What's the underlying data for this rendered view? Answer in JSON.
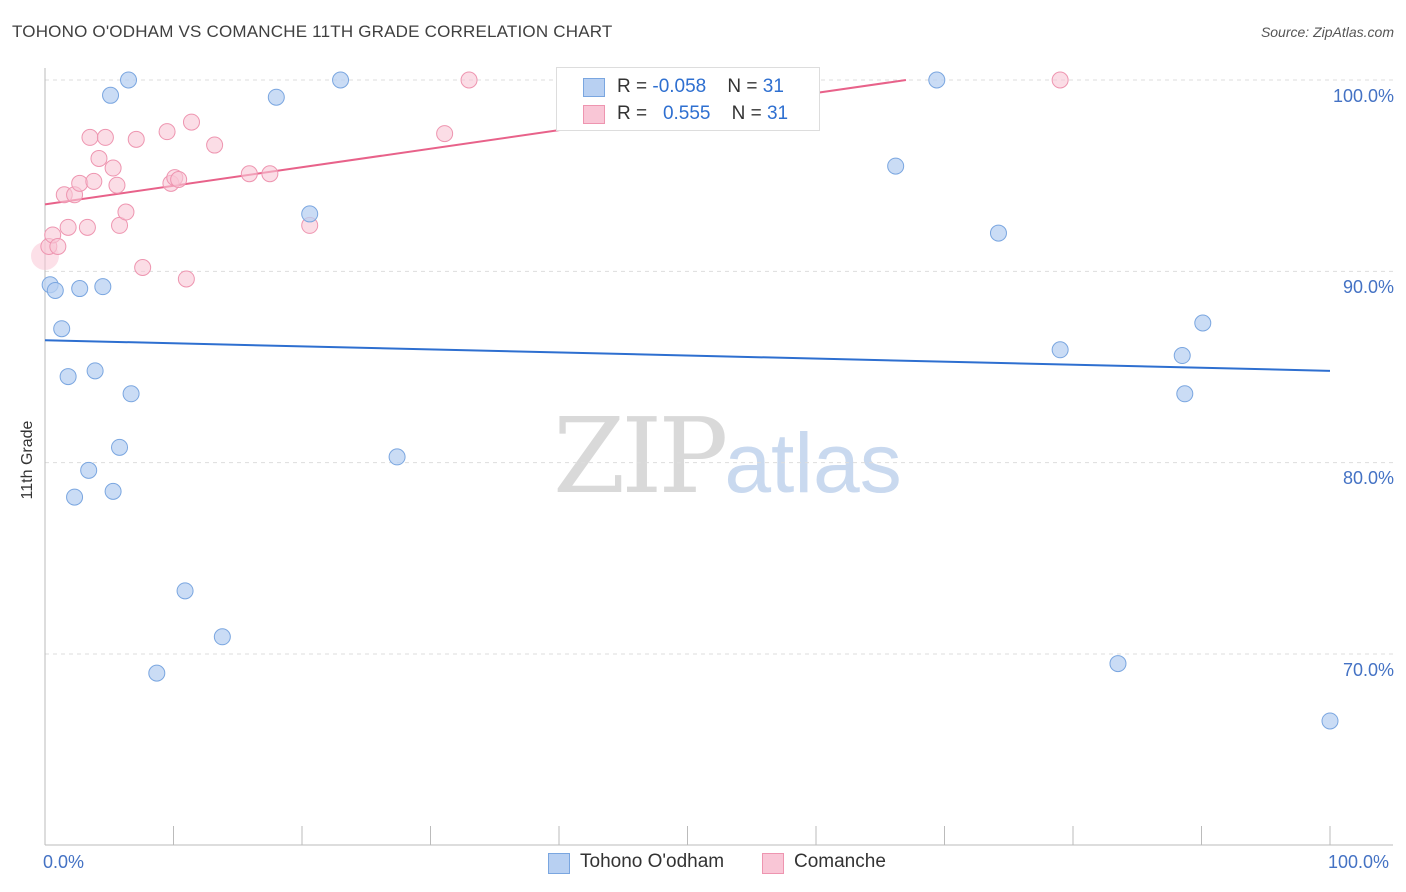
{
  "title": "TOHONO O'ODHAM VS COMANCHE 11TH GRADE CORRELATION CHART",
  "source": "Source: ZipAtlas.com",
  "watermark": {
    "zip": "ZIP",
    "atlas": "atlas"
  },
  "legend": {
    "rows": [
      {
        "r_label": "R = ",
        "r_value": "-0.058",
        "n_label": "N = ",
        "n_value": "31"
      },
      {
        "r_label": "R = ",
        "r_value": "0.555",
        "n_label": "N = ",
        "n_value": "31"
      }
    ]
  },
  "colors": {
    "blue_fill": "#b8d0f2",
    "blue_stroke": "#7aa6e0",
    "blue_line": "#2e6fd0",
    "pink_fill": "#f9c6d6",
    "pink_stroke": "#ee95b0",
    "pink_line": "#e8628a",
    "grid": "#dddddd",
    "tick_text": "#4472c4"
  },
  "chart_data": {
    "type": "scatter",
    "title": "TOHONO O'ODHAM VS COMANCHE 11TH GRADE CORRELATION CHART",
    "xlabel": "",
    "ylabel": "11th Grade",
    "xlim": [
      0,
      100
    ],
    "ylim": [
      60,
      101
    ],
    "x_tick_labels": [
      "0.0%",
      "100.0%"
    ],
    "y_ticks": [
      70,
      80,
      90,
      100
    ],
    "y_tick_labels": [
      "70.0%",
      "80.0%",
      "90.0%",
      "100.0%"
    ],
    "series": [
      {
        "name": "Tohono O'odham",
        "r": -0.058,
        "n": 31,
        "trend": {
          "x": [
            0,
            100
          ],
          "y": [
            86.4,
            84.8
          ]
        },
        "points": [
          {
            "x": 0.4,
            "y": 89.3
          },
          {
            "x": 0.8,
            "y": 89.0
          },
          {
            "x": 1.3,
            "y": 87.0
          },
          {
            "x": 1.8,
            "y": 84.5
          },
          {
            "x": 2.3,
            "y": 78.2
          },
          {
            "x": 2.7,
            "y": 89.1
          },
          {
            "x": 3.4,
            "y": 79.6
          },
          {
            "x": 3.9,
            "y": 84.8
          },
          {
            "x": 4.5,
            "y": 89.2
          },
          {
            "x": 5.1,
            "y": 99.2
          },
          {
            "x": 5.3,
            "y": 78.5
          },
          {
            "x": 5.8,
            "y": 80.8
          },
          {
            "x": 6.5,
            "y": 100.0
          },
          {
            "x": 6.7,
            "y": 83.6
          },
          {
            "x": 8.7,
            "y": 69.0
          },
          {
            "x": 10.9,
            "y": 73.3
          },
          {
            "x": 13.8,
            "y": 70.9
          },
          {
            "x": 18.0,
            "y": 99.1
          },
          {
            "x": 20.6,
            "y": 93.0
          },
          {
            "x": 23.0,
            "y": 100.0
          },
          {
            "x": 27.4,
            "y": 80.3
          },
          {
            "x": 47.6,
            "y": 100.0
          },
          {
            "x": 66.2,
            "y": 95.5
          },
          {
            "x": 69.4,
            "y": 100.0
          },
          {
            "x": 74.2,
            "y": 92.0
          },
          {
            "x": 79.0,
            "y": 85.9
          },
          {
            "x": 83.5,
            "y": 69.5
          },
          {
            "x": 88.5,
            "y": 85.6
          },
          {
            "x": 88.7,
            "y": 83.6
          },
          {
            "x": 90.1,
            "y": 87.3
          },
          {
            "x": 100.0,
            "y": 66.5
          }
        ]
      },
      {
        "name": "Comanche",
        "r": 0.555,
        "n": 31,
        "trend": {
          "x": [
            0,
            67
          ],
          "y": [
            93.5,
            100.0
          ]
        },
        "points": [
          {
            "x": 0.3,
            "y": 91.3
          },
          {
            "x": 0.6,
            "y": 91.9
          },
          {
            "x": 1.0,
            "y": 91.3
          },
          {
            "x": 1.5,
            "y": 94.0
          },
          {
            "x": 1.8,
            "y": 92.3
          },
          {
            "x": 2.3,
            "y": 94.0
          },
          {
            "x": 2.7,
            "y": 94.6
          },
          {
            "x": 3.3,
            "y": 92.3
          },
          {
            "x": 3.5,
            "y": 97.0
          },
          {
            "x": 3.8,
            "y": 94.7
          },
          {
            "x": 4.2,
            "y": 95.9
          },
          {
            "x": 4.7,
            "y": 97.0
          },
          {
            "x": 5.3,
            "y": 95.4
          },
          {
            "x": 5.6,
            "y": 94.5
          },
          {
            "x": 5.8,
            "y": 92.4
          },
          {
            "x": 6.3,
            "y": 93.1
          },
          {
            "x": 7.1,
            "y": 96.9
          },
          {
            "x": 7.6,
            "y": 90.2
          },
          {
            "x": 9.5,
            "y": 97.3
          },
          {
            "x": 9.8,
            "y": 94.6
          },
          {
            "x": 10.1,
            "y": 94.9
          },
          {
            "x": 10.4,
            "y": 94.8
          },
          {
            "x": 11.0,
            "y": 89.6
          },
          {
            "x": 11.4,
            "y": 97.8
          },
          {
            "x": 13.2,
            "y": 96.6
          },
          {
            "x": 15.9,
            "y": 95.1
          },
          {
            "x": 17.5,
            "y": 95.1
          },
          {
            "x": 20.6,
            "y": 92.4
          },
          {
            "x": 31.1,
            "y": 97.2
          },
          {
            "x": 33.0,
            "y": 100.0
          },
          {
            "x": 79.0,
            "y": 100.0
          }
        ]
      }
    ]
  },
  "bottom_legend": [
    {
      "label": "Tohono O'odham"
    },
    {
      "label": "Comanche"
    }
  ]
}
